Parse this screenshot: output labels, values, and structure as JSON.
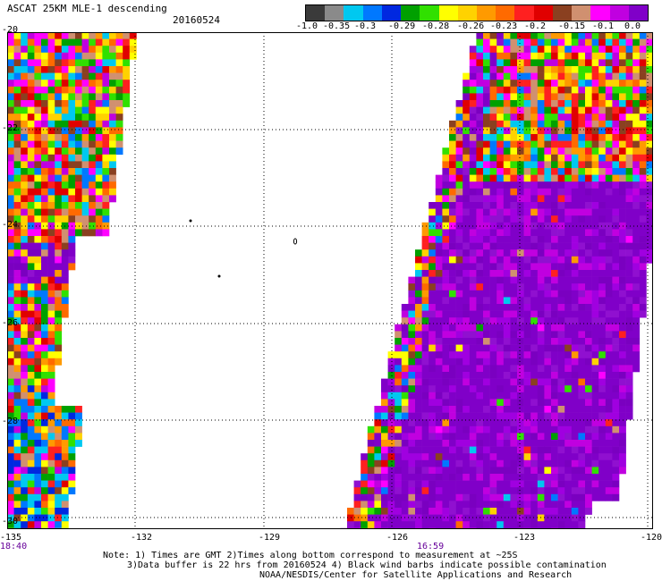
{
  "header": {
    "title": "ASCAT 25KM MLE-1 descending",
    "date": "20160524"
  },
  "colorbar": {
    "colors": [
      "#3a3a3a",
      "#8a8a8a",
      "#00c8f0",
      "#0078ff",
      "#0028e0",
      "#00a000",
      "#30e000",
      "#ffff00",
      "#ffd200",
      "#ff9a00",
      "#ff6a00",
      "#ff2020",
      "#e00000",
      "#8a4020",
      "#d09070",
      "#ff00ff",
      "#c000e0",
      "#8000c8"
    ],
    "ticks": [
      "-1.0",
      "-0.35",
      "-0.3",
      "-0.29",
      "-0.28",
      "-0.26",
      "-0.23",
      "-0.2",
      "-0.15",
      "-0.1",
      "0.0"
    ]
  },
  "map": {
    "lat_labels": [
      "-20",
      "-22",
      "-24",
      "-26",
      "-28",
      "-30"
    ],
    "lon_labels": [
      "-135",
      "-132",
      "-129",
      "-126",
      "-123",
      "-120"
    ],
    "time_labels": [
      "18:40",
      "16:59"
    ]
  },
  "notes": {
    "line1": "Note: 1) Times are GMT 2)Times along bottom correspond to measurement at ~25S",
    "line2": "3)Data buffer is 22 hrs from 20160524 4) Black wind barbs indicate possible contamination",
    "line3": "NOAA/NESDIS/Center for Satellite Applications and Research"
  }
}
